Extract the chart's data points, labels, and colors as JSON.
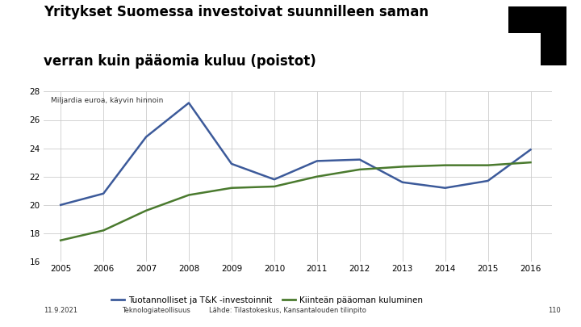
{
  "title_line1": "Yritykset Suomessa investoivat suunnilleen saman",
  "title_line2": "verran kuin pääomia kuluu (poistot)",
  "subtitle": "Miljardia euroa, käyvin hinnoin",
  "years": [
    2005,
    2006,
    2007,
    2008,
    2009,
    2010,
    2011,
    2012,
    2013,
    2014,
    2015,
    2016
  ],
  "blue_series": [
    20.0,
    20.8,
    24.8,
    27.2,
    22.9,
    21.8,
    23.1,
    23.2,
    21.6,
    21.2,
    21.7,
    23.9
  ],
  "green_series": [
    17.5,
    18.2,
    19.6,
    20.7,
    21.2,
    21.3,
    22.0,
    22.5,
    22.7,
    22.8,
    22.8,
    23.0
  ],
  "blue_color": "#3C5A9A",
  "green_color": "#4A7A2E",
  "ylim_min": 16,
  "ylim_max": 28,
  "yticks": [
    16,
    18,
    20,
    22,
    24,
    26,
    28
  ],
  "legend_blue": "Tuotannolliset ja T&K -investoinnit",
  "legend_green": "Kiinteän pääoman kuluminen",
  "footer_date": "11.9.2021",
  "footer_org": "Teknologiateollisuus",
  "footer_source": "Lähde: Tilastokeskus, Kansantalouden tilinpito",
  "footer_page": "110",
  "bg_color": "#ffffff",
  "plot_bg_color": "#ffffff",
  "grid_color": "#cccccc"
}
